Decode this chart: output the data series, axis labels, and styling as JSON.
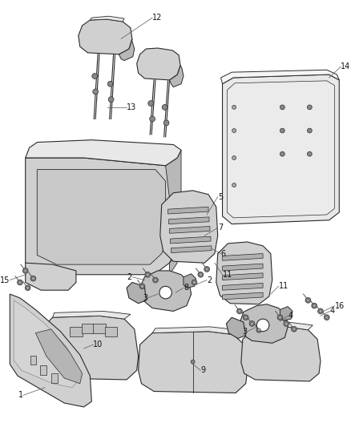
{
  "bg_color": "#ffffff",
  "line_color": "#2a2a2a",
  "fill_light": "#e8e8e8",
  "fill_mid": "#d0d0d0",
  "fill_dark": "#b8b8b8",
  "fill_white": "#f5f5f5",
  "hatch_color": "#cccccc",
  "label_fontsize": 7,
  "callout_lw": 0.5,
  "part_lw": 0.8
}
